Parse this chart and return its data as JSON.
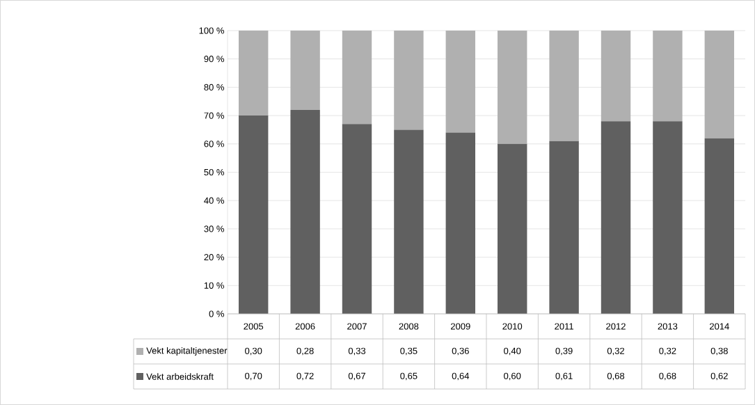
{
  "chart_data": {
    "type": "bar",
    "stacked": true,
    "grid": "y",
    "legend": "bottom",
    "categories": [
      "2005",
      "2006",
      "2007",
      "2008",
      "2009",
      "2010",
      "2011",
      "2012",
      "2013",
      "2014"
    ],
    "ylim": [
      0,
      1
    ],
    "yticks": [
      {
        "value": 0,
        "label": "0 %"
      },
      {
        "value": 0.1,
        "label": "10 %"
      },
      {
        "value": 0.2,
        "label": "20 %"
      },
      {
        "value": 0.3,
        "label": "30 %"
      },
      {
        "value": 0.4,
        "label": "40 %"
      },
      {
        "value": 0.5,
        "label": "50 %"
      },
      {
        "value": 0.6,
        "label": "60 %"
      },
      {
        "value": 0.7,
        "label": "70 %"
      },
      {
        "value": 0.8,
        "label": "80 %"
      },
      {
        "value": 0.9,
        "label": "90 %"
      },
      {
        "value": 1,
        "label": "100 %"
      }
    ],
    "series": [
      {
        "name": "Vekt arbeidskraft",
        "color": "#606060",
        "values": [
          0.7,
          0.72,
          0.67,
          0.65,
          0.64,
          0.6,
          0.61,
          0.68,
          0.68,
          0.62
        ],
        "value_labels": [
          "0,70",
          "0,72",
          "0,67",
          "0,65",
          "0,64",
          "0,60",
          "0,61",
          "0,68",
          "0,68",
          "0,62"
        ]
      },
      {
        "name": "Vekt kapitaltjenester",
        "color": "#b0b0b0",
        "values": [
          0.3,
          0.28,
          0.33,
          0.35,
          0.36,
          0.4,
          0.39,
          0.32,
          0.32,
          0.38
        ],
        "value_labels": [
          "0,30",
          "0,28",
          "0,33",
          "0,35",
          "0,36",
          "0,40",
          "0,39",
          "0,32",
          "0,32",
          "0,38"
        ]
      }
    ]
  }
}
